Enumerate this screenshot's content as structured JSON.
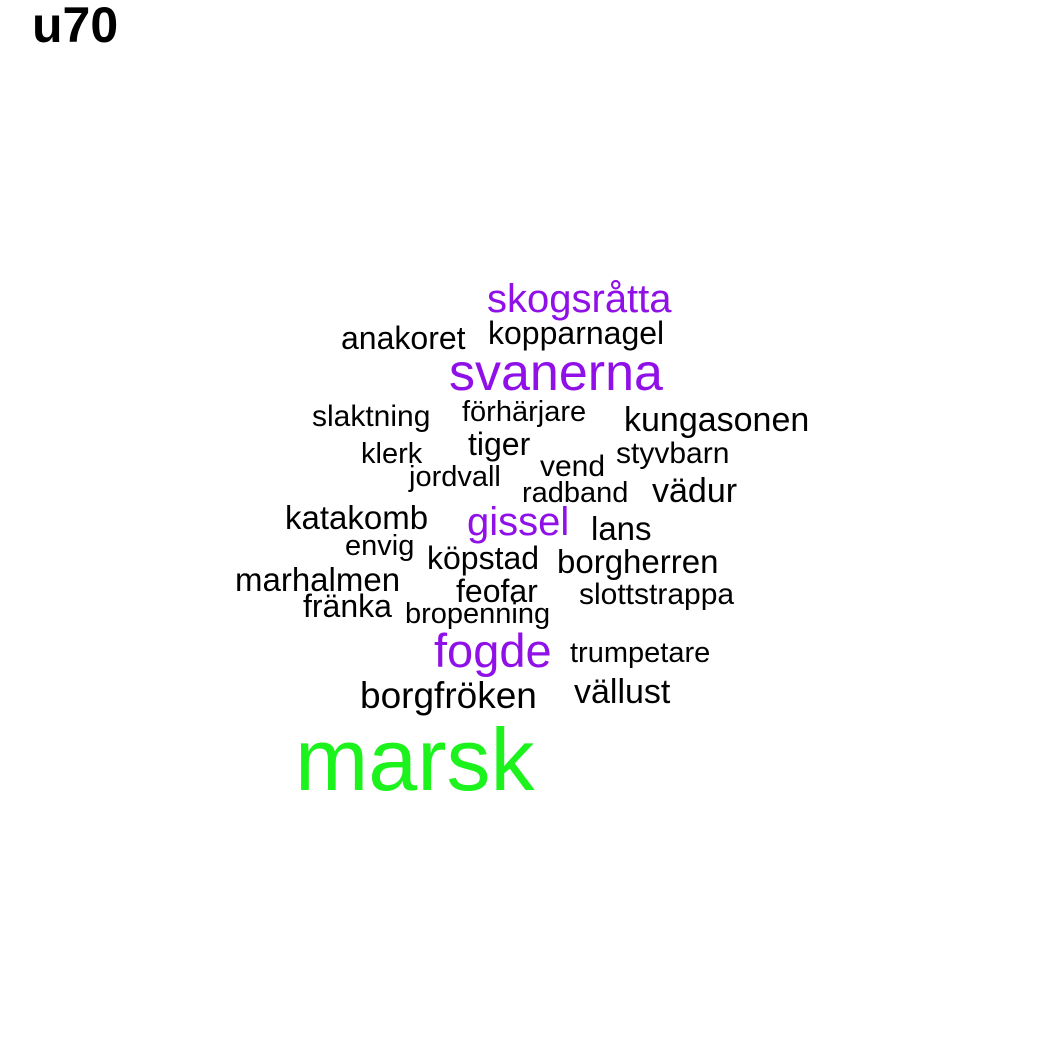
{
  "title": "u70",
  "colors": {
    "default": "#000000",
    "purple": "#9010e8",
    "green": "#1cf21c"
  },
  "words": [
    {
      "text": "skogsråtta",
      "color": "purple"
    },
    {
      "text": "anakoret",
      "color": "default"
    },
    {
      "text": "kopparnagel",
      "color": "default"
    },
    {
      "text": "svanerna",
      "color": "purple"
    },
    {
      "text": "slaktning",
      "color": "default"
    },
    {
      "text": "förhärjare",
      "color": "default"
    },
    {
      "text": "kungasonen",
      "color": "default"
    },
    {
      "text": "tiger",
      "color": "default"
    },
    {
      "text": "klerk",
      "color": "default"
    },
    {
      "text": "styvbarn",
      "color": "default"
    },
    {
      "text": "vend",
      "color": "default"
    },
    {
      "text": "jordvall",
      "color": "default"
    },
    {
      "text": "radband",
      "color": "default"
    },
    {
      "text": "vädur",
      "color": "default"
    },
    {
      "text": "katakomb",
      "color": "default"
    },
    {
      "text": "gissel",
      "color": "purple"
    },
    {
      "text": "lans",
      "color": "default"
    },
    {
      "text": "envig",
      "color": "default"
    },
    {
      "text": "köpstad",
      "color": "default"
    },
    {
      "text": "borgherren",
      "color": "default"
    },
    {
      "text": "marhalmen",
      "color": "default"
    },
    {
      "text": "feofar",
      "color": "default"
    },
    {
      "text": "slottstrappa",
      "color": "default"
    },
    {
      "text": "fränka",
      "color": "default"
    },
    {
      "text": "bropenning",
      "color": "default"
    },
    {
      "text": "fogde",
      "color": "purple"
    },
    {
      "text": "trumpetare",
      "color": "default"
    },
    {
      "text": "borgfröken",
      "color": "default"
    },
    {
      "text": "vällust",
      "color": "default"
    },
    {
      "text": "marsk",
      "color": "green"
    }
  ]
}
